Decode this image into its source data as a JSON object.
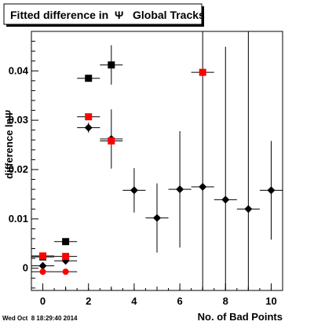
{
  "chart_data": {
    "type": "scatter",
    "title": "Fitted difference in  Ψ   Global Tracks",
    "xlabel": "No. of Bad Points",
    "ylabel": "difference lnΨ",
    "timestamp": "Wed Oct  8 18:29:40 2014",
    "xlim": [
      -0.5,
      10.5
    ],
    "ylim": [
      -0.0045,
      0.048
    ],
    "x_ticks": [
      0,
      2,
      4,
      6,
      8,
      10
    ],
    "x_tick_labels": [
      "0",
      "2",
      "4",
      "6",
      "8",
      "10"
    ],
    "y_ticks": [
      0,
      0.01,
      0.02,
      0.03,
      0.04
    ],
    "y_tick_labels": [
      "0",
      "0.01",
      "0.02",
      "0.03",
      "0.04"
    ],
    "series": [
      {
        "marker": "diamond",
        "color": "#000000",
        "x": [
          0,
          1,
          2,
          3,
          4,
          5,
          6,
          7,
          8,
          9,
          10
        ],
        "y": [
          0.0005,
          0.0015,
          0.0285,
          0.0262,
          0.0158,
          0.0102,
          0.016,
          0.0165,
          0.0139,
          0.012,
          0.0158
        ],
        "y_err": [
          0.0005,
          0.0005,
          0.001,
          0.006,
          0.0045,
          0.007,
          0.0118,
          0.032,
          0.031,
          0.04,
          0.01
        ],
        "x_err": 0.5
      },
      {
        "marker": "square",
        "color": "#000000",
        "x": [
          0,
          1,
          2,
          3
        ],
        "y": [
          0.0023,
          0.0054,
          0.0385,
          0.0412
        ],
        "y_err": [
          0,
          0,
          0,
          0.004
        ],
        "x_err": 0.5
      },
      {
        "marker": "square",
        "color": "#ff0000",
        "x": [
          0,
          1,
          2,
          3,
          7
        ],
        "y": [
          0.0025,
          0.0024,
          0.0307,
          0.0258,
          0.0397
        ],
        "y_err": [
          0,
          0,
          0,
          0,
          0
        ],
        "x_err": 0.5
      },
      {
        "marker": "circle",
        "color": "#ff0000",
        "x": [
          0,
          1
        ],
        "y": [
          -0.0007,
          -0.0007
        ],
        "y_err": [
          0,
          0
        ],
        "x_err": 0.5
      }
    ]
  }
}
